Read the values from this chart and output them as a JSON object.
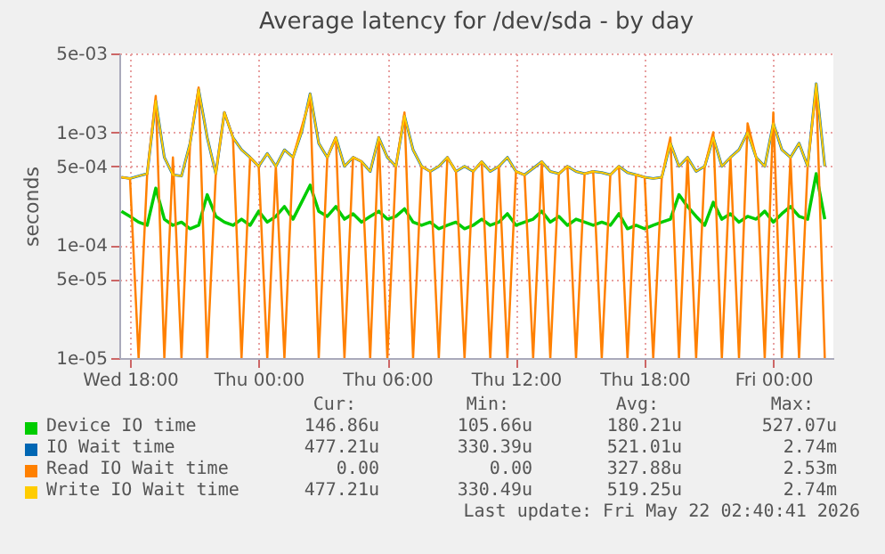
{
  "chart_data": {
    "type": "line",
    "title": "Average latency for /dev/sda - by day",
    "ylabel": "seconds",
    "log": "y",
    "grid": true,
    "legend": "bottom",
    "xlim": [
      "2026-05-20T17:30",
      "2026-05-22T02:48"
    ],
    "ylim": [
      1e-05,
      0.005
    ],
    "xticks": [
      {
        "value": "2026-05-20T18:00",
        "label": "Wed 18:00"
      },
      {
        "value": "2026-05-21T00:00",
        "label": "Thu 00:00"
      },
      {
        "value": "2026-05-21T06:00",
        "label": "Thu 06:00"
      },
      {
        "value": "2026-05-21T12:00",
        "label": "Thu 12:00"
      },
      {
        "value": "2026-05-21T18:00",
        "label": "Thu 18:00"
      },
      {
        "value": "2026-05-22T00:00",
        "label": "Fri 00:00"
      }
    ],
    "yticks": [
      {
        "value": 1e-05,
        "label": "1e-05"
      },
      {
        "value": 5e-05,
        "label": "5e-05"
      },
      {
        "value": 0.0001,
        "label": "1e-04"
      },
      {
        "value": 0.0005,
        "label": "5e-04"
      },
      {
        "value": 0.001,
        "label": "1e-03"
      },
      {
        "value": 0.005,
        "label": "5e-03"
      }
    ],
    "x": [
      "2026-05-20T17:36",
      "2026-05-20T18:00",
      "2026-05-20T18:24",
      "2026-05-20T18:48",
      "2026-05-20T19:12",
      "2026-05-20T19:36",
      "2026-05-20T20:00",
      "2026-05-20T20:24",
      "2026-05-20T20:48",
      "2026-05-20T21:12",
      "2026-05-20T21:36",
      "2026-05-20T22:00",
      "2026-05-20T22:24",
      "2026-05-20T22:48",
      "2026-05-20T23:12",
      "2026-05-20T23:36",
      "2026-05-21T00:00",
      "2026-05-21T00:24",
      "2026-05-21T00:48",
      "2026-05-21T01:12",
      "2026-05-21T01:36",
      "2026-05-21T02:00",
      "2026-05-21T02:24",
      "2026-05-21T02:48",
      "2026-05-21T03:12",
      "2026-05-21T03:36",
      "2026-05-21T04:00",
      "2026-05-21T04:24",
      "2026-05-21T04:48",
      "2026-05-21T05:12",
      "2026-05-21T05:36",
      "2026-05-21T06:00",
      "2026-05-21T06:24",
      "2026-05-21T06:48",
      "2026-05-21T07:12",
      "2026-05-21T07:36",
      "2026-05-21T08:00",
      "2026-05-21T08:24",
      "2026-05-21T08:48",
      "2026-05-21T09:12",
      "2026-05-21T09:36",
      "2026-05-21T10:00",
      "2026-05-21T10:24",
      "2026-05-21T10:48",
      "2026-05-21T11:12",
      "2026-05-21T11:36",
      "2026-05-21T12:00",
      "2026-05-21T12:24",
      "2026-05-21T12:48",
      "2026-05-21T13:12",
      "2026-05-21T13:36",
      "2026-05-21T14:00",
      "2026-05-21T14:24",
      "2026-05-21T14:48",
      "2026-05-21T15:12",
      "2026-05-21T15:36",
      "2026-05-21T16:00",
      "2026-05-21T16:24",
      "2026-05-21T16:48",
      "2026-05-21T17:12",
      "2026-05-21T17:36",
      "2026-05-21T18:00",
      "2026-05-21T18:24",
      "2026-05-21T18:48",
      "2026-05-21T19:12",
      "2026-05-21T19:36",
      "2026-05-21T20:00",
      "2026-05-21T20:24",
      "2026-05-21T20:48",
      "2026-05-21T21:12",
      "2026-05-21T21:36",
      "2026-05-21T22:00",
      "2026-05-21T22:24",
      "2026-05-21T22:48",
      "2026-05-21T23:12",
      "2026-05-21T23:36",
      "2026-05-22T00:00",
      "2026-05-22T00:24",
      "2026-05-22T00:48",
      "2026-05-22T01:12",
      "2026-05-22T01:36",
      "2026-05-22T02:00",
      "2026-05-22T02:24"
    ],
    "series": [
      {
        "name": "Device IO time",
        "color": "#00cc00",
        "values": [
          0.0002,
          0.00018,
          0.00016,
          0.00015,
          0.00032,
          0.00017,
          0.00015,
          0.00016,
          0.00014,
          0.00015,
          0.00028,
          0.00018,
          0.00016,
          0.00015,
          0.00017,
          0.00015,
          0.0002,
          0.00016,
          0.00018,
          0.00022,
          0.00017,
          0.00024,
          0.00034,
          0.0002,
          0.00018,
          0.00022,
          0.00017,
          0.00019,
          0.00016,
          0.00018,
          0.0002,
          0.00017,
          0.00018,
          0.00021,
          0.00016,
          0.00015,
          0.00016,
          0.00014,
          0.00015,
          0.00016,
          0.00014,
          0.00015,
          0.00017,
          0.00015,
          0.00016,
          0.00019,
          0.00015,
          0.00016,
          0.00017,
          0.0002,
          0.00016,
          0.00018,
          0.00015,
          0.00017,
          0.00016,
          0.00015,
          0.00016,
          0.00015,
          0.00019,
          0.00014,
          0.00015,
          0.00014,
          0.00015,
          0.00016,
          0.00017,
          0.00028,
          0.00022,
          0.00018,
          0.00015,
          0.00024,
          0.00017,
          0.00019,
          0.00016,
          0.00018,
          0.00017,
          0.0002,
          0.00016,
          0.00019,
          0.00022,
          0.00018,
          0.00017,
          0.00043,
          0.00017
        ]
      },
      {
        "name": "IO Wait time",
        "color": "#0066b3",
        "values": [
          0.0004,
          0.00039,
          0.00041,
          0.00043,
          0.0019,
          0.0006,
          0.00042,
          0.00041,
          0.0008,
          0.0024,
          0.0009,
          0.00043,
          0.0015,
          0.0009,
          0.0007,
          0.0006,
          0.0005,
          0.00065,
          0.0005,
          0.0007,
          0.0006,
          0.001,
          0.0022,
          0.0008,
          0.0006,
          0.0009,
          0.0005,
          0.0006,
          0.00055,
          0.00045,
          0.0009,
          0.0006,
          0.0005,
          0.0014,
          0.0007,
          0.0005,
          0.00045,
          0.0005,
          0.0006,
          0.00045,
          0.0005,
          0.00045,
          0.00055,
          0.00045,
          0.0005,
          0.0006,
          0.00045,
          0.00042,
          0.00048,
          0.00055,
          0.00045,
          0.00043,
          0.0005,
          0.00045,
          0.00043,
          0.00045,
          0.00044,
          0.00042,
          0.0005,
          0.00044,
          0.00042,
          0.0004,
          0.00039,
          0.0004,
          0.0008,
          0.0005,
          0.0006,
          0.00045,
          0.0005,
          0.0009,
          0.0005,
          0.0006,
          0.0007,
          0.001,
          0.0006,
          0.0005,
          0.0012,
          0.0007,
          0.0006,
          0.0008,
          0.0005,
          0.0027,
          0.0005
        ]
      },
      {
        "name": "Read IO Wait time",
        "color": "#ff8000",
        "values": [
          0.0004,
          0.00039,
          1e-05,
          0.00043,
          0.0021,
          1e-05,
          0.0006,
          1e-05,
          0.0008,
          0.0025,
          1e-05,
          0.00043,
          0.0015,
          0.0009,
          1e-05,
          0.0006,
          0.0005,
          1e-05,
          0.0005,
          1e-05,
          0.0006,
          0.0011,
          0.002,
          1e-05,
          0.0006,
          0.0009,
          1e-05,
          0.0006,
          0.00055,
          1e-05,
          0.0009,
          1e-05,
          0.0005,
          0.0015,
          1e-05,
          0.0005,
          0.00045,
          1e-05,
          0.0006,
          0.00045,
          1e-05,
          0.00045,
          0.00055,
          1e-05,
          0.0005,
          1e-05,
          0.00045,
          0.00042,
          1e-05,
          0.00055,
          1e-05,
          0.00043,
          0.0005,
          1e-05,
          0.00043,
          0.00045,
          1e-05,
          0.00042,
          0.0005,
          1e-05,
          0.00042,
          0.0004,
          1e-05,
          0.0004,
          0.0009,
          1e-05,
          0.0006,
          1e-05,
          0.0005,
          0.001,
          1e-05,
          0.0006,
          1e-05,
          0.0012,
          0.0006,
          1e-05,
          0.0015,
          1e-05,
          0.0006,
          1e-05,
          0.0005,
          0.0025,
          1e-05
        ]
      },
      {
        "name": "Write IO Wait time",
        "color": "#ffcc00",
        "values": [
          0.0004,
          0.00039,
          0.00041,
          0.00043,
          0.0019,
          0.0006,
          0.00042,
          0.00041,
          0.0008,
          0.0024,
          0.0009,
          0.00043,
          0.0015,
          0.0009,
          0.0007,
          0.0006,
          0.0005,
          0.00065,
          0.0005,
          0.0007,
          0.0006,
          0.001,
          0.0022,
          0.0008,
          0.0006,
          0.0009,
          0.0005,
          0.0006,
          0.00055,
          0.00045,
          0.0009,
          0.0006,
          0.0005,
          0.0014,
          0.0007,
          0.0005,
          0.00045,
          0.0005,
          0.0006,
          0.00045,
          0.0005,
          0.00045,
          0.00055,
          0.00045,
          0.0005,
          0.0006,
          0.00045,
          0.00042,
          0.00048,
          0.00055,
          0.00045,
          0.00043,
          0.0005,
          0.00045,
          0.00043,
          0.00045,
          0.00044,
          0.00042,
          0.0005,
          0.00044,
          0.00042,
          0.0004,
          0.00039,
          0.0004,
          0.0008,
          0.0005,
          0.0006,
          0.00045,
          0.0005,
          0.0009,
          0.0005,
          0.0006,
          0.0007,
          0.001,
          0.0006,
          0.0005,
          0.0012,
          0.0007,
          0.0006,
          0.0008,
          0.0005,
          0.0027,
          0.0005
        ]
      }
    ],
    "annotations": [
      "Cur:",
      "Min:",
      "Avg:",
      "Max:",
      "146.86u",
      "105.66u",
      "180.21u",
      "527.07u",
      "477.21u",
      "330.39u",
      "521.01u",
      "2.74m",
      "0.00",
      "0.00",
      "327.88u",
      "2.53m",
      "477.21u",
      "330.49u",
      "519.25u",
      "2.74m",
      "Last update: Fri May 22 02:40:41 2026"
    ]
  }
}
